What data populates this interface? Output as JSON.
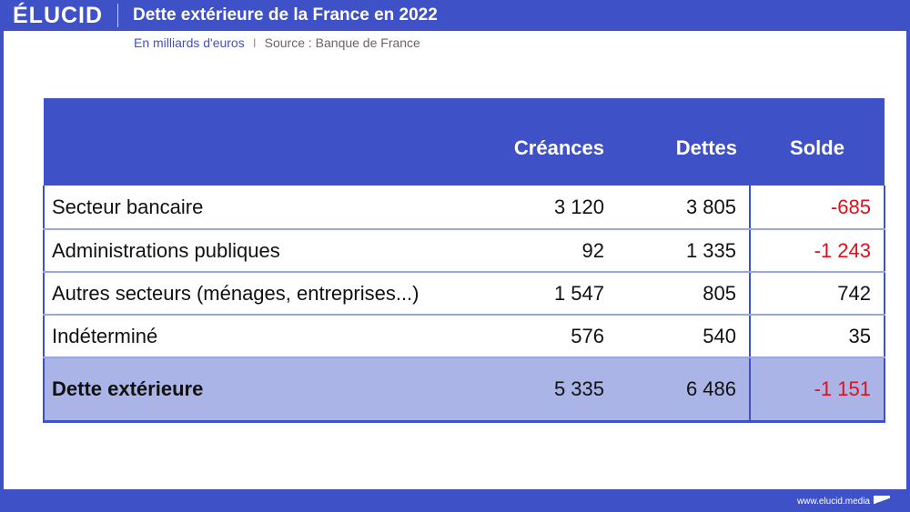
{
  "header": {
    "logo": "ÉLUCID",
    "title": "Dette extérieure de la France en 2022"
  },
  "subtitle": {
    "units": "En milliards d'euros",
    "separator": "I",
    "source": "Source : Banque de France"
  },
  "table": {
    "columns": [
      "",
      "Créances",
      "Dettes",
      "Solde"
    ],
    "rows": [
      {
        "label": "Secteur bancaire",
        "creances": "3 120",
        "dettes": "3 805",
        "solde": "-685"
      },
      {
        "label": "Administrations publiques",
        "creances": "92",
        "dettes": "1 335",
        "solde": "-1 243"
      },
      {
        "label": "Autres secteurs (ménages, entreprises...)",
        "creances": "1 547",
        "dettes": "805",
        "solde": "742"
      },
      {
        "label": "Indéterminé",
        "creances": "576",
        "dettes": "540",
        "solde": "35"
      }
    ],
    "total": {
      "label": "Dette extérieure",
      "creances": "5 335",
      "dettes": "6 486",
      "solde": "-1 151"
    }
  },
  "colors": {
    "brand": "#3f51c7",
    "total_row": "#aab4e6",
    "negative": "#e0101c"
  },
  "footer": {
    "url": "www.elucid.media"
  }
}
